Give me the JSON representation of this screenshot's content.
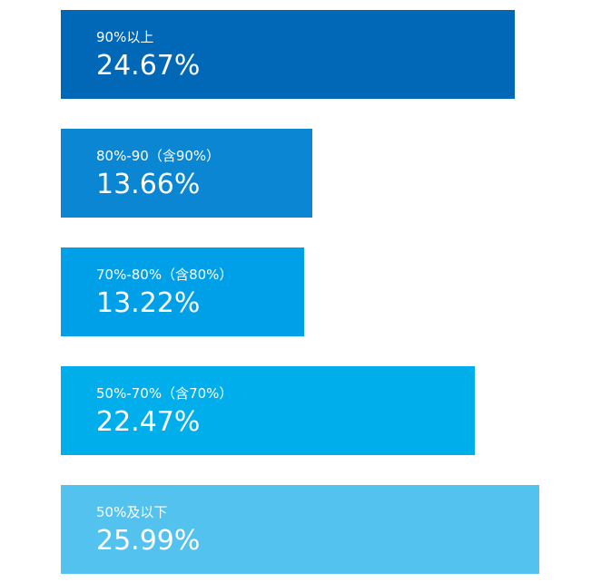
{
  "chart_data": {
    "type": "bar",
    "orientation": "horizontal",
    "categories": [
      "90%以上",
      "80%-90（含90%）",
      "70%-80%（含80%）",
      "50%-70%（含70%）",
      "50%及以下"
    ],
    "values": [
      24.67,
      13.66,
      13.22,
      22.47,
      25.99
    ],
    "value_labels": [
      "24.67%",
      "13.66%",
      "13.22%",
      "22.47%",
      "25.99%"
    ],
    "colors": [
      "#0068b7",
      "#0a86d3",
      "#00a0e9",
      "#00aeeb",
      "#54c2ee"
    ],
    "xlim": [
      0,
      25.99
    ],
    "grid": false,
    "legend": "none"
  }
}
